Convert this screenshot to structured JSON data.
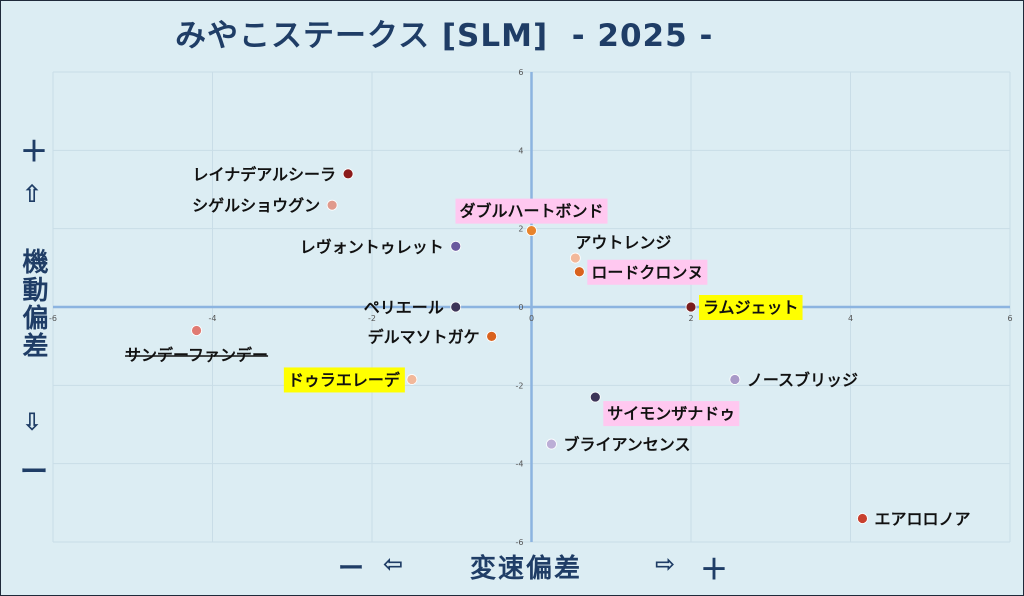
{
  "title": "みやこステークス [SLM]  - 2025 -",
  "y_axis": {
    "label": "機動偏差",
    "top_sign": "＋",
    "top_arrow": "⇧",
    "bottom_arrow": "⇩",
    "bottom_sign": "ー"
  },
  "x_axis": {
    "label": "変速偏差",
    "left_sign": "ー",
    "left_arrow": "⇦",
    "right_arrow": "⇨",
    "right_sign": "＋"
  },
  "chart_data": {
    "type": "scatter",
    "xlabel": "変速偏差",
    "ylabel": "機動偏差",
    "xlim": [
      -6,
      6
    ],
    "ylim": [
      -6,
      6
    ],
    "grid": true,
    "x_ticks": [
      -6,
      -4,
      -2,
      0,
      2,
      4,
      6
    ],
    "y_ticks": [
      -6,
      -4,
      -2,
      0,
      2,
      4,
      6
    ],
    "points": [
      {
        "label": "レイナデアルシーラ",
        "x": -2.3,
        "y": 3.4,
        "color": "#8b1a1a",
        "highlight": "none",
        "label_side": "left",
        "strike": false
      },
      {
        "label": "シゲルショウグン",
        "x": -2.5,
        "y": 2.6,
        "color": "#e09a8c",
        "highlight": "none",
        "label_side": "left",
        "strike": false
      },
      {
        "label": "ダブルハートボンド",
        "x": 0.0,
        "y": 1.95,
        "color": "#e8842c",
        "highlight": "#ffc8f0",
        "label_side": "above",
        "strike": false
      },
      {
        "label": "レヴォントゥレット",
        "x": -0.95,
        "y": 1.55,
        "color": "#6a5a9e",
        "highlight": "none",
        "label_side": "left",
        "strike": false
      },
      {
        "label": "アウトレンジ",
        "x": 0.55,
        "y": 1.25,
        "color": "#f2b89a",
        "highlight": "none",
        "label_side": "above-right",
        "strike": false
      },
      {
        "label": "ロードクロンヌ",
        "x": 0.6,
        "y": 0.9,
        "color": "#d9621e",
        "highlight": "#ffc8f0",
        "label_side": "right",
        "strike": false
      },
      {
        "label": "ペリエール",
        "x": -0.95,
        "y": 0.0,
        "color": "#3d3558",
        "highlight": "none",
        "label_side": "left",
        "strike": false
      },
      {
        "label": "ラムジェット",
        "x": 2.0,
        "y": 0.0,
        "color": "#7a1e1e",
        "highlight": "#ffff00",
        "label_side": "right",
        "strike": false
      },
      {
        "label": "デルマソトガケ",
        "x": -0.5,
        "y": -0.75,
        "color": "#d9621e",
        "highlight": "none",
        "label_side": "left",
        "strike": false
      },
      {
        "label": "サンデーファンデー",
        "x": -4.2,
        "y": -0.6,
        "color": "#e07a72",
        "highlight": "none",
        "label_side": "below",
        "strike": true
      },
      {
        "label": "ドゥラエレーデ",
        "x": -1.5,
        "y": -1.85,
        "color": "#f2b89a",
        "highlight": "#ffff00",
        "label_side": "left",
        "strike": false
      },
      {
        "label": "ノースブリッジ",
        "x": 2.55,
        "y": -1.85,
        "color": "#a899c8",
        "highlight": "none",
        "label_side": "right",
        "strike": false
      },
      {
        "label": "サイモンザナドゥ",
        "x": 0.8,
        "y": -2.3,
        "color": "#3d3558",
        "highlight": "#ffc8f0",
        "label_side": "below-right",
        "strike": false
      },
      {
        "label": "ブライアンセンス",
        "x": 0.25,
        "y": -3.5,
        "color": "#bcaed6",
        "highlight": "none",
        "label_side": "right",
        "strike": false
      },
      {
        "label": "エアロロノア",
        "x": 4.15,
        "y": -5.4,
        "color": "#c8402e",
        "highlight": "none",
        "label_side": "right",
        "strike": false
      }
    ]
  }
}
